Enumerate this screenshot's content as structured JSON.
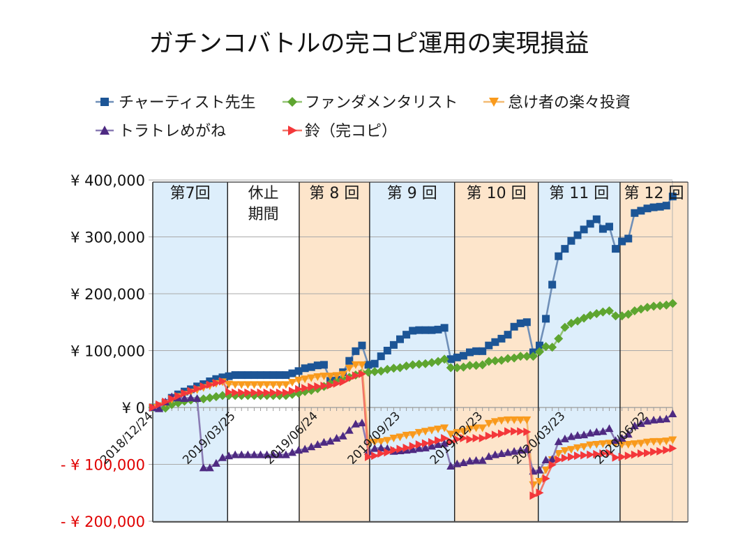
{
  "chart_data": {
    "type": "line",
    "title": "ガチンコバトルの完コピ運用の実現損益",
    "xlabel": "",
    "ylabel": "",
    "ylim": [
      -200000,
      400000
    ],
    "grid": "horizontal",
    "legend_position": "top",
    "negative_label_color": "#e00000",
    "positive_label_color": "#111111",
    "category_count": 83,
    "y_ticks": [
      {
        "value": 400000,
        "label": "¥ 400,000"
      },
      {
        "value": 300000,
        "label": "¥ 300,000"
      },
      {
        "value": 200000,
        "label": "¥ 200,000"
      },
      {
        "value": 100000,
        "label": "¥ 100,000"
      },
      {
        "value": 0,
        "label": "¥ 0"
      },
      {
        "value": -100000,
        "label": "- ¥ 100,000"
      },
      {
        "value": -200000,
        "label": "- ¥ 200,000"
      }
    ],
    "x_tick_labels": [
      {
        "index": 0,
        "label": "2018/12/24"
      },
      {
        "index": 13,
        "label": "2019/03/25"
      },
      {
        "index": 26,
        "label": "2019/06/24"
      },
      {
        "index": 39,
        "label": "2019/09/23"
      },
      {
        "index": 52,
        "label": "2019/12/23"
      },
      {
        "index": 65,
        "label": "2020/03/23"
      },
      {
        "index": 78,
        "label": "2020/06/22"
      }
    ],
    "bands": [
      {
        "label_lines": [
          "第7回"
        ],
        "start": 0,
        "end": 11.8,
        "fill": "#ddeefb"
      },
      {
        "label_lines": [
          "休止",
          "期間"
        ],
        "start": 11.8,
        "end": 23.1,
        "fill": "#ffffff"
      },
      {
        "label_lines": [
          "第 8 回"
        ],
        "start": 23.1,
        "end": 34.2,
        "fill": "#fde5cb"
      },
      {
        "label_lines": [
          "第 9 回"
        ],
        "start": 34.2,
        "end": 47.6,
        "fill": "#ddeefb"
      },
      {
        "label_lines": [
          "第 10 回"
        ],
        "start": 47.6,
        "end": 60.8,
        "fill": "#fde5cb"
      },
      {
        "label_lines": [
          "第 11 回"
        ],
        "start": 60.8,
        "end": 73.7,
        "fill": "#ddeefb"
      },
      {
        "label_lines": [
          "第 12 回"
        ],
        "start": 73.7,
        "end": 84.4,
        "fill": "#fde5cb"
      }
    ],
    "series": [
      {
        "key": "chartist",
        "name": "チャーティスト先生",
        "marker": "square",
        "marker_color": "#1c5596",
        "line_color": "#6f8fb8",
        "values": [
          0,
          0,
          8000,
          17000,
          23000,
          28000,
          32000,
          37000,
          41000,
          46000,
          50000,
          53000,
          55000,
          57000,
          57000,
          57000,
          57000,
          57000,
          57000,
          57000,
          57000,
          57000,
          60000,
          64000,
          69000,
          71000,
          74000,
          75000,
          50000,
          54000,
          62000,
          82000,
          99000,
          109000,
          75000,
          77000,
          90000,
          100000,
          110000,
          120000,
          128000,
          135000,
          136000,
          136000,
          136000,
          137000,
          140000,
          85000,
          88000,
          91000,
          97000,
          99000,
          99000,
          109000,
          115000,
          121000,
          128000,
          142000,
          148000,
          150000,
          97000,
          109000,
          156000,
          216000,
          266000,
          279000,
          293000,
          303000,
          313000,
          323000,
          331000,
          314000,
          318000,
          279000,
          292000,
          297000,
          342000,
          346000,
          350000,
          352000,
          353000,
          355000,
          371000
        ]
      },
      {
        "key": "fundamentalist",
        "name": "ファンダメンタリスト",
        "marker": "diamond",
        "marker_color": "#5ea530",
        "line_color": "#93c474",
        "values": [
          0,
          0,
          -1000,
          5000,
          8000,
          11000,
          13000,
          14000,
          15000,
          17000,
          19000,
          21000,
          21000,
          21000,
          21000,
          21000,
          21000,
          21000,
          21000,
          21000,
          21000,
          21000,
          23000,
          25000,
          28000,
          30000,
          33000,
          37000,
          42000,
          46000,
          50000,
          53000,
          57000,
          61000,
          62000,
          63000,
          64000,
          67000,
          69000,
          70000,
          73000,
          75000,
          76000,
          77000,
          79000,
          81000,
          85000,
          70000,
          70000,
          71000,
          74000,
          74000,
          75000,
          81000,
          82000,
          83000,
          86000,
          87000,
          90000,
          90000,
          90000,
          98000,
          107000,
          106000,
          121000,
          141000,
          148000,
          152000,
          157000,
          162000,
          165000,
          168000,
          170000,
          161000,
          161000,
          164000,
          170000,
          173000,
          176000,
          178000,
          179000,
          180000,
          183000
        ]
      },
      {
        "key": "lazy-investor",
        "name": "怠け者の楽々投資",
        "marker": "triangle-down",
        "marker_color": "#f99a1c",
        "line_color": "#f3bb72",
        "values": [
          0,
          3000,
          8000,
          14000,
          19000,
          23000,
          27000,
          31000,
          35000,
          38000,
          42000,
          45000,
          41000,
          40000,
          40000,
          40000,
          40000,
          40000,
          40000,
          40000,
          40000,
          40000,
          44000,
          48000,
          50000,
          52000,
          54000,
          55000,
          55000,
          56000,
          58000,
          69000,
          75000,
          75000,
          -62000,
          -61000,
          -60000,
          -58000,
          -54000,
          -52000,
          -49000,
          -48000,
          -44000,
          -42000,
          -40000,
          -38000,
          -36000,
          -47000,
          -44000,
          -42000,
          -38000,
          -36000,
          -36000,
          -28000,
          -25000,
          -23000,
          -22000,
          -22000,
          -22000,
          -22000,
          -136000,
          -130000,
          -110000,
          -92000,
          -81000,
          -76000,
          -74000,
          -71000,
          -69000,
          -66000,
          -65000,
          -64000,
          -63000,
          -63000,
          -65000,
          -65000,
          -64000,
          -63000,
          -61000,
          -60000,
          -60000,
          -59000,
          -57000
        ]
      },
      {
        "key": "toratore-megane",
        "name": "トラトレめがね",
        "marker": "triangle-up",
        "marker_color": "#4e2a82",
        "line_color": "#8a7cb4",
        "values": [
          0,
          -2000,
          10000,
          19000,
          17000,
          16000,
          17000,
          16000,
          -106000,
          -106000,
          -98000,
          -88000,
          -85000,
          -83000,
          -83000,
          -83000,
          -83000,
          -83000,
          -83000,
          -83000,
          -83000,
          -83000,
          -79000,
          -75000,
          -73000,
          -69000,
          -65000,
          -61000,
          -59000,
          -54000,
          -50000,
          -40000,
          -29000,
          -27000,
          -77000,
          -72000,
          -71000,
          -72000,
          -77000,
          -76000,
          -75000,
          -74000,
          -72000,
          -71000,
          -68000,
          -65000,
          -63000,
          -103000,
          -99000,
          -97000,
          -94000,
          -93000,
          -93000,
          -86000,
          -83000,
          -81000,
          -79000,
          -77000,
          -75000,
          -74000,
          -112000,
          -110000,
          -92000,
          -91000,
          -60000,
          -55000,
          -51000,
          -49000,
          -48000,
          -45000,
          -43000,
          -42000,
          -37000,
          -58000,
          -54000,
          -47000,
          -32000,
          -28000,
          -24000,
          -22000,
          -21000,
          -20000,
          -11000
        ]
      },
      {
        "key": "suzu-copy",
        "name": "鈴（完コピ）",
        "marker": "triangle-right",
        "marker_color": "#f4373a",
        "line_color": "#f27668",
        "values": [
          0,
          5000,
          10000,
          15000,
          20000,
          25000,
          29000,
          33000,
          37000,
          40000,
          43000,
          46000,
          27000,
          26000,
          26000,
          26000,
          26000,
          26000,
          26000,
          26000,
          26000,
          26000,
          29000,
          32000,
          34000,
          36000,
          37000,
          38000,
          39000,
          42000,
          45000,
          51000,
          56000,
          59000,
          -87000,
          -85000,
          -81000,
          -79000,
          -75000,
          -73000,
          -71000,
          -68000,
          -65000,
          -63000,
          -61000,
          -58000,
          -54000,
          -60000,
          -56000,
          -54000,
          -56000,
          -54000,
          -54000,
          -50000,
          -48000,
          -46000,
          -42000,
          -42000,
          -42000,
          -43000,
          -155000,
          -150000,
          -125000,
          -101000,
          -92000,
          -89000,
          -87000,
          -85000,
          -84000,
          -83000,
          -82000,
          -81000,
          -80000,
          -88000,
          -87000,
          -85000,
          -83000,
          -81000,
          -80000,
          -78000,
          -77000,
          -75000,
          -72000
        ]
      }
    ]
  }
}
